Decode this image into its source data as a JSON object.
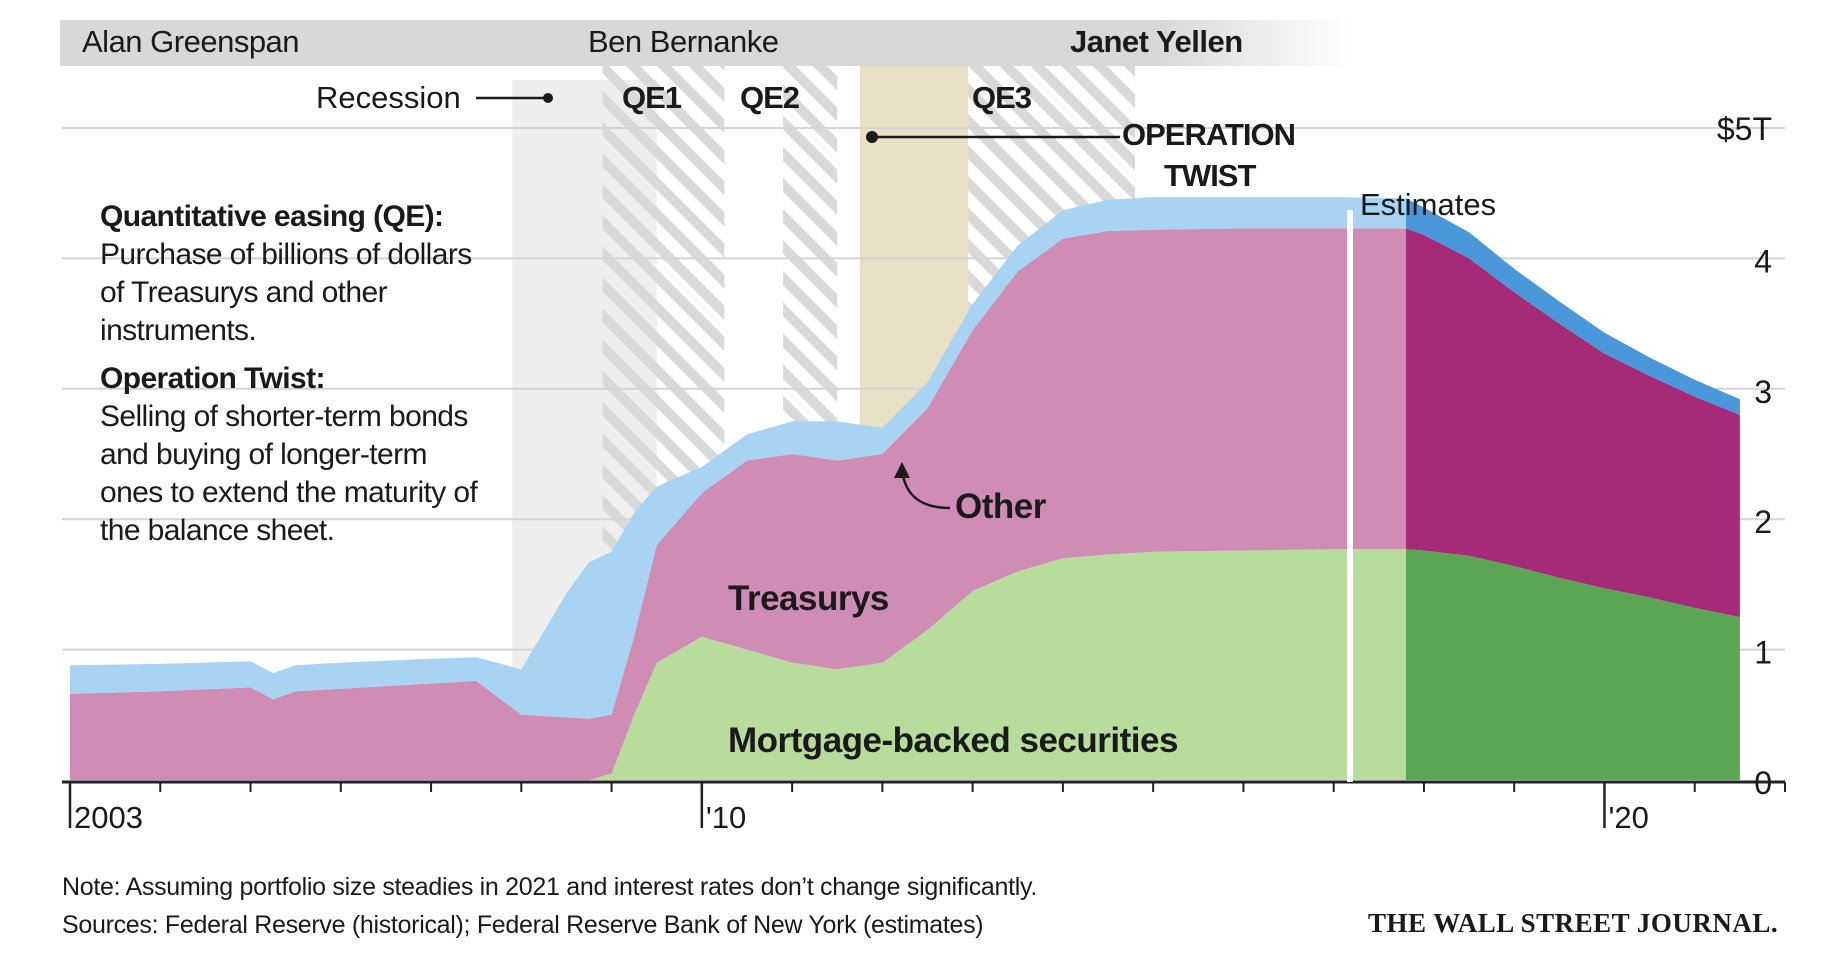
{
  "chairs": [
    {
      "name": "Alan Greenspan",
      "bold": false
    },
    {
      "name": "Ben Bernanke",
      "bold": false
    },
    {
      "name": "Janet Yellen",
      "bold": true
    }
  ],
  "periods": {
    "recession": "Recession",
    "qe1": "QE1",
    "qe2": "QE2",
    "qe3": "QE3",
    "operation_twist_line1": "OPERATION",
    "operation_twist_line2": "TWIST",
    "estimates": "Estimates"
  },
  "definitions": {
    "qe_term": "Quantitative easing (QE):",
    "qe_text": "Purchase of billions of dollars of Treasurys and other instruments.",
    "twist_term": "Operation Twist:",
    "twist_text": "Selling of shorter-term bonds and buying of longer-term ones to extend the maturity of the balance sheet."
  },
  "series_labels": {
    "treasurys": "Treasurys",
    "other": "Other",
    "mbs": "Mortgage-backed securities"
  },
  "notes": {
    "note": "Note: Assuming portfolio size steadies in 2021 and interest rates don’t change significantly.",
    "sources": "Sources: Federal Reserve (historical); Federal Reserve Bank of New York (estimates)"
  },
  "brand": "THE WALL STREET JOURNAL.",
  "colors": {
    "mbs": "#b7dc9b",
    "treasurys": "#cf8db5",
    "other": "#a9d3f3",
    "mbs_est": "#5aa654",
    "treasurys_est": "#a52a78",
    "other_est": "#4a97d9",
    "twist_band": "#e7e0c4",
    "recession_band": "#eeeeee",
    "chair_bar": "#dcdcdc"
  },
  "chart_data": {
    "type": "area",
    "stacked": true,
    "x_unit": "year",
    "x_ticks": [
      {
        "x": 2003,
        "label": "2003"
      },
      {
        "x": 2010,
        "label": "'10"
      },
      {
        "x": 2020,
        "label": "'20"
      }
    ],
    "y_ticks": [
      {
        "y": 0,
        "label": "0"
      },
      {
        "y": 1,
        "label": "1"
      },
      {
        "y": 2,
        "label": "2"
      },
      {
        "y": 3,
        "label": "3"
      },
      {
        "y": 4,
        "label": "4"
      },
      {
        "y": 5,
        "label": "$5T"
      }
    ],
    "xlim": [
      2003,
      2022
    ],
    "ylim": [
      0,
      5
    ],
    "x": [
      2003.0,
      2004.0,
      2005.0,
      2005.25,
      2005.5,
      2006.0,
      2007.0,
      2007.5,
      2008.0,
      2008.5,
      2008.75,
      2009.0,
      2009.25,
      2009.5,
      2010.0,
      2010.5,
      2011.0,
      2011.5,
      2012.0,
      2012.5,
      2013.0,
      2013.5,
      2014.0,
      2014.5,
      2015.0,
      2016.0,
      2017.0,
      2017.8
    ],
    "series": [
      {
        "name": "Mortgage-backed securities",
        "values": [
          0,
          0,
          0,
          0,
          0,
          0,
          0,
          0,
          0,
          0,
          0,
          0.05,
          0.5,
          0.9,
          1.1,
          1.0,
          0.9,
          0.85,
          0.9,
          1.15,
          1.45,
          1.6,
          1.7,
          1.73,
          1.75,
          1.76,
          1.77,
          1.77
        ]
      },
      {
        "name": "Treasurys",
        "values": [
          0.66,
          0.68,
          0.71,
          0.62,
          0.68,
          0.7,
          0.74,
          0.76,
          0.5,
          0.48,
          0.47,
          0.45,
          0.6,
          0.9,
          1.1,
          1.45,
          1.6,
          1.6,
          1.6,
          1.7,
          2.0,
          2.3,
          2.45,
          2.48,
          2.47,
          2.47,
          2.46,
          2.46
        ]
      },
      {
        "name": "Other",
        "values": [
          0.22,
          0.21,
          0.2,
          0.2,
          0.2,
          0.2,
          0.19,
          0.18,
          0.35,
          0.95,
          1.2,
          1.25,
          0.95,
          0.45,
          0.2,
          0.2,
          0.25,
          0.3,
          0.2,
          0.2,
          0.2,
          0.2,
          0.22,
          0.24,
          0.25,
          0.24,
          0.24,
          0.23
        ]
      }
    ],
    "estimates": {
      "x": [
        2017.8,
        2018.0,
        2018.5,
        2019.0,
        2019.5,
        2020.0,
        2020.5,
        2021.0,
        2021.5
      ],
      "series": [
        {
          "name": "Mortgage-backed securities",
          "values": [
            1.77,
            1.76,
            1.72,
            1.64,
            1.55,
            1.47,
            1.4,
            1.32,
            1.25
          ]
        },
        {
          "name": "Treasurys",
          "values": [
            2.46,
            2.42,
            2.28,
            2.1,
            1.95,
            1.8,
            1.7,
            1.62,
            1.55
          ]
        },
        {
          "name": "Other",
          "values": [
            0.23,
            0.21,
            0.2,
            0.18,
            0.17,
            0.16,
            0.14,
            0.13,
            0.12
          ]
        }
      ]
    },
    "bands": [
      {
        "name": "Recession",
        "from": 2007.9,
        "to": 2009.5
      },
      {
        "name": "QE1",
        "from": 2008.9,
        "to": 2010.25
      },
      {
        "name": "QE2",
        "from": 2010.9,
        "to": 2011.5
      },
      {
        "name": "Operation Twist",
        "from": 2011.75,
        "to": 2012.95
      },
      {
        "name": "QE3",
        "from": 2012.95,
        "to": 2014.8
      }
    ],
    "chair_terms": [
      {
        "name": "Alan Greenspan",
        "from": 2003.0,
        "to": 2006.08
      },
      {
        "name": "Ben Bernanke",
        "from": 2006.08,
        "to": 2014.1
      },
      {
        "name": "Janet Yellen",
        "from": 2014.1,
        "to": 2018.1
      }
    ]
  }
}
